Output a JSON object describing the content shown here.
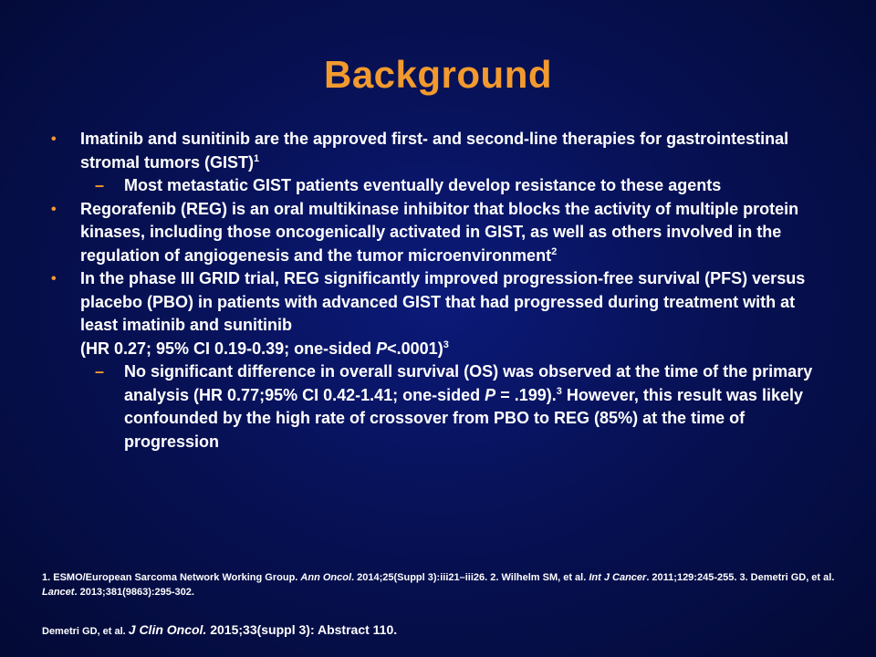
{
  "slide": {
    "title": "Background"
  },
  "bullets": [
    {
      "text": "Imatinib and sunitinib are the approved first- and second-line therapies for gastrointestinal stromal tumors (GIST)",
      "sup": "1",
      "subs": [
        {
          "text": "Most metastatic GIST patients eventually develop resistance to these agents"
        }
      ]
    },
    {
      "text": "Regorafenib (REG) is an oral multikinase inhibitor that blocks the activity of multiple protein kinases, including those oncogenically activated in GIST, as well as others involved in the regulation of angiogenesis and the tumor microenvironment",
      "sup": "2"
    },
    {
      "text_a": "In the phase III GRID trial, REG significantly improved progression-free survival (PFS) versus placebo (PBO) in patients with advanced GIST that had progressed during treatment with at least imatinib and sunitinib",
      "text_b": "(HR 0.27; 95% CI 0.19-0.39; one-sided ",
      "p_italic": "P",
      "text_c": "<.0001)",
      "sup": "3",
      "subs": [
        {
          "text_a": "No significant difference in overall survival (OS) was observed at the time of the primary analysis (HR 0.77;95% CI 0.42-1.41; one-sided ",
          "p_italic": "P",
          "text_b": " = .199).",
          "sup": "3",
          "text_c": " However, this result was likely confounded by the high rate of crossover from PBO to REG (85%) at the time of progression"
        }
      ]
    }
  ],
  "references": {
    "r1_a": "1. ESMO/European Sarcoma Network Working Group. ",
    "r1_journal": "Ann Oncol",
    "r1_b": ". 2014;25(Suppl 3):iii21–iii26. 2. Wilhelm SM, et al. ",
    "r2_journal": "Int J Cancer",
    "r2_b": ". 2011;129:245-255.  3. Demetri GD, et al. ",
    "r3_journal": "Lancet",
    "r3_b": ". 2013;381(9863):295-302."
  },
  "citation": {
    "authors": "Demetri GD, et al. ",
    "journal": "J Clin Oncol.",
    "rest": " 2015;33(suppl 3): Abstract 110."
  },
  "icons": {
    "bullet": "•",
    "dash": "–"
  },
  "colors": {
    "accent": "#f39a2e",
    "text": "#ffffff",
    "background": "#071155"
  }
}
